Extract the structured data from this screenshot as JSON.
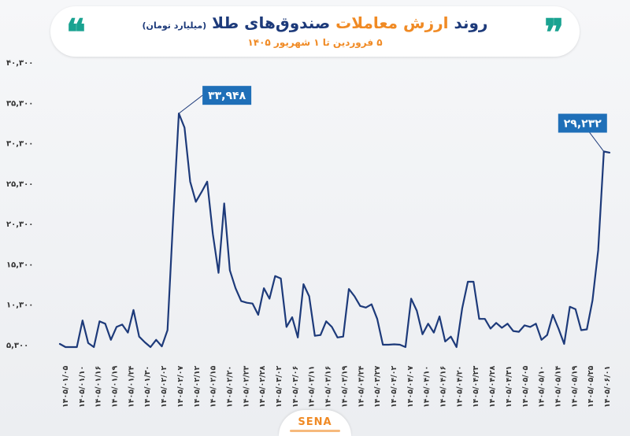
{
  "header": {
    "title_part1": "روند",
    "title_accent": "ارزش معاملات",
    "title_part2": "صندوق‌های طلا",
    "title_unit": "(میلیارد تومان)",
    "subtitle": "۵ فروردین تا ۱ شهریور ۱۴۰۵"
  },
  "logo": {
    "text": "SENA"
  },
  "colors": {
    "line": "#1d3a7a",
    "accent": "#f08a24",
    "callout": "#1f6fb8",
    "quote": "#1aa391",
    "axis_text": "#333333"
  },
  "chart_data": {
    "type": "line",
    "title": "روند ارزش معاملات صندوق‌های طلا (میلیارد تومان)",
    "subtitle": "۵ فروردین تا ۱ شهریور ۱۴۰۵",
    "ylim": [
      5300,
      40300
    ],
    "ytick_labels": [
      "۴۰,۳۰۰",
      "۳۵,۳۰۰",
      "۳۰,۳۰۰",
      "۲۵,۳۰۰",
      "۲۰,۳۰۰",
      "۱۵,۳۰۰",
      "۱۰,۳۰۰",
      "۵,۳۰۰"
    ],
    "ytick_values": [
      40300,
      35300,
      30300,
      25300,
      20300,
      15300,
      10300,
      5300
    ],
    "xtick_labels": [
      "۱۴۰۵/۰۱/۰۵",
      "۱۴۰۵/۰۱/۱۰",
      "۱۴۰۵/۰۱/۱۶",
      "۱۴۰۵/۰۱/۱۹",
      "۱۴۰۵/۰۱/۲۴",
      "۱۴۰۵/۰۱/۳۰",
      "۱۴۰۵/۰۲/۰۲",
      "۱۴۰۵/۰۲/۰۷",
      "۱۴۰۵/۰۲/۱۲",
      "۱۴۰۵/۰۲/۱۵",
      "۱۴۰۵/۰۲/۲۰",
      "۱۴۰۵/۰۲/۲۳",
      "۱۴۰۵/۰۲/۲۸",
      "۱۴۰۵/۰۳/۰۲",
      "۱۴۰۵/۰۳/۰۶",
      "۱۴۰۵/۰۳/۱۱",
      "۱۴۰۵/۰۳/۱۶",
      "۱۴۰۵/۰۳/۱۹",
      "۱۴۰۵/۰۳/۲۴",
      "۱۴۰۵/۰۳/۲۷",
      "۱۴۰۵/۰۴/۰۲",
      "۱۴۰۵/۰۴/۰۷",
      "۱۴۰۵/۰۴/۱۰",
      "۱۴۰۵/۰۴/۱۶",
      "۱۴۰۵/۰۴/۲۰",
      "۱۴۰۵/۰۴/۲۳",
      "۱۴۰۵/۰۴/۲۸",
      "۱۴۰۵/۰۴/۳۱",
      "۱۴۰۵/۰۵/۰۵",
      "۱۴۰۵/۰۵/۱۰",
      "۱۴۰۵/۰۵/۱۴",
      "۱۴۰۵/۰۵/۱۹",
      "۱۴۰۵/۰۵/۲۵",
      "۱۴۰۵/۰۶/۰۱"
    ],
    "values": [
      5400,
      3200,
      3000,
      4000,
      8300,
      5500,
      3500,
      8200,
      7900,
      5900,
      7500,
      7800,
      6800,
      9600,
      6300,
      5600,
      3100,
      5900,
      5100,
      7100,
      21000,
      33948,
      32200,
      25500,
      23000,
      24200,
      25500,
      19000,
      14200,
      22800,
      14500,
      12300,
      10700,
      10500,
      10400,
      9000,
      12300,
      11000,
      13800,
      13500,
      7500,
      8700,
      6200,
      12800,
      11300,
      6400,
      6500,
      8200,
      7500,
      6200,
      6300,
      12200,
      11300,
      10100,
      9900,
      10300,
      8500,
      5300,
      5300,
      5350,
      5300,
      1500,
      11000,
      9500,
      6600,
      7900,
      6800,
      8800,
      5700,
      6300,
      4800,
      9800,
      13100,
      13100,
      8500,
      8500,
      7300,
      8000,
      7400,
      7900,
      7000,
      6900,
      7700,
      7500,
      7900,
      5900,
      6500,
      9000,
      7300,
      5400,
      10000,
      9700,
      7100,
      7200,
      10800,
      17000,
      29232,
      29100
    ],
    "annotations": [
      {
        "label": "۳۳,۹۴۸",
        "value": 33948
      },
      {
        "label": "۲۹,۲۳۲",
        "value": 29232
      }
    ]
  }
}
